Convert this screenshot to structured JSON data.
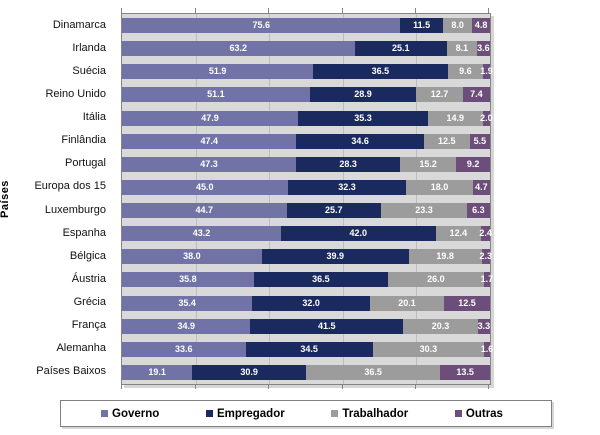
{
  "chart": {
    "y_axis_title": "Países",
    "colors": {
      "governo": "#7173a6",
      "empregador": "#1a2a5e",
      "trabalhador": "#9c9c9c",
      "outras": "#6d4d7a",
      "plot_background": "#d9d9d9",
      "gridline": "#bdbdbd",
      "plot_border": "#848484",
      "tick": "#848484",
      "legend_border": "#7f7f7f",
      "bar_value_text": "#ffffff"
    },
    "legend": [
      {
        "label": "Governo",
        "color": "#7173a6"
      },
      {
        "label": "Empregador",
        "color": "#1a2a5e"
      },
      {
        "label": "Trabalhador",
        "color": "#9c9c9c"
      },
      {
        "label": "Outras",
        "color": "#6d4d7a"
      }
    ]
  },
  "chart_data": {
    "type": "bar",
    "orientation": "horizontal",
    "stacked": true,
    "title": "",
    "xlabel": "",
    "ylabel": "Países",
    "xlim": [
      0,
      100
    ],
    "gridline_step": 20,
    "grid": true,
    "legend_position": "bottom",
    "value_labels": "one-decimal, white, centered in segment",
    "categories": [
      "Dinamarca",
      "Irlanda",
      "Suécia",
      "Reino Unido",
      "Itália",
      "Finlândia",
      "Portugal",
      "Europa dos 15",
      "Luxemburgo",
      "Espanha",
      "Bélgica",
      "Áustria",
      "Grécia",
      "França",
      "Alemanha",
      "Países Baixos"
    ],
    "series": [
      {
        "name": "Governo",
        "color": "#7173a6",
        "values": [
          75.6,
          63.2,
          51.9,
          51.1,
          47.9,
          47.4,
          47.3,
          45.0,
          44.7,
          43.2,
          38.0,
          35.8,
          35.4,
          34.9,
          33.6,
          19.1
        ]
      },
      {
        "name": "Empregador",
        "color": "#1a2a5e",
        "values": [
          11.5,
          25.1,
          36.5,
          28.9,
          35.3,
          34.6,
          28.3,
          32.3,
          25.7,
          42.0,
          39.9,
          36.5,
          32.0,
          41.5,
          34.5,
          30.9
        ]
      },
      {
        "name": "Trabalhador",
        "color": "#9c9c9c",
        "values": [
          8.0,
          8.1,
          9.6,
          12.7,
          14.9,
          12.5,
          15.2,
          18.0,
          23.3,
          12.4,
          19.8,
          26.0,
          20.1,
          20.3,
          30.3,
          36.5
        ]
      },
      {
        "name": "Outras",
        "color": "#6d4d7a",
        "values": [
          4.8,
          3.6,
          1.9,
          7.4,
          2.0,
          5.5,
          9.2,
          4.7,
          6.3,
          2.4,
          2.3,
          1.7,
          12.5,
          3.3,
          1.6,
          13.5
        ]
      }
    ]
  }
}
